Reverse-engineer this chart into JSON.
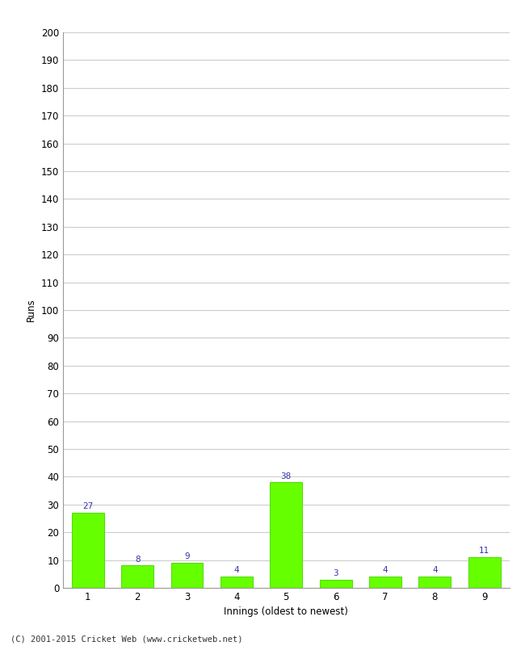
{
  "categories": [
    1,
    2,
    3,
    4,
    5,
    6,
    7,
    8,
    9
  ],
  "values": [
    27,
    8,
    9,
    4,
    38,
    3,
    4,
    4,
    11
  ],
  "bar_color": "#66ff00",
  "bar_edge_color": "#55dd00",
  "xlabel": "Innings (oldest to newest)",
  "ylabel": "Runs",
  "ylim": [
    0,
    200
  ],
  "yticks": [
    0,
    10,
    20,
    30,
    40,
    50,
    60,
    70,
    80,
    90,
    100,
    110,
    120,
    130,
    140,
    150,
    160,
    170,
    180,
    190,
    200
  ],
  "label_color": "#3333aa",
  "label_fontsize": 7.5,
  "footer": "(C) 2001-2015 Cricket Web (www.cricketweb.net)",
  "background_color": "#ffffff",
  "grid_color": "#cccccc",
  "tick_fontsize": 8.5,
  "axis_label_fontsize": 8.5
}
